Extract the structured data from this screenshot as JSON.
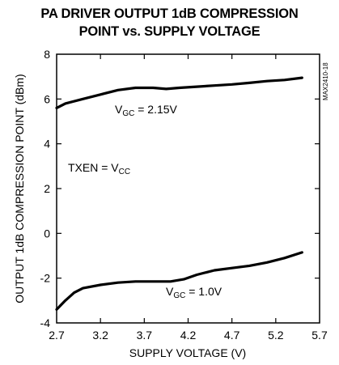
{
  "chart_data": {
    "type": "line",
    "title_line1": "PA DRIVER OUTPUT 1dB COMPRESSION",
    "title_line2": "POINT vs. SUPPLY VOLTAGE",
    "xlabel": "SUPPLY VOLTAGE (V)",
    "ylabel": "OUTPUT 1dB COMPRESSION POINT (dBm)",
    "xlim": [
      2.7,
      5.7
    ],
    "ylim": [
      -4,
      8
    ],
    "xticks": [
      2.7,
      3.2,
      3.7,
      4.2,
      4.7,
      5.2,
      5.7
    ],
    "yticks": [
      -4,
      -2,
      0,
      2,
      4,
      6,
      8
    ],
    "grid": false,
    "legend": "none",
    "watermark": "MAX2410-18",
    "series": [
      {
        "label_main": "V",
        "label_sub": "GC",
        "label_rest": " = 2.15V",
        "x": [
          2.7,
          2.8,
          3.0,
          3.2,
          3.4,
          3.6,
          3.8,
          3.95,
          4.1,
          4.3,
          4.5,
          4.7,
          4.9,
          5.1,
          5.3,
          5.5
        ],
        "y": [
          5.6,
          5.8,
          6.0,
          6.2,
          6.4,
          6.5,
          6.5,
          6.45,
          6.5,
          6.55,
          6.6,
          6.65,
          6.72,
          6.8,
          6.85,
          6.95
        ]
      },
      {
        "label_main": "V",
        "label_sub": "GC",
        "label_rest": " = 1.0V",
        "x": [
          2.7,
          2.8,
          2.9,
          3.0,
          3.2,
          3.4,
          3.6,
          3.8,
          4.0,
          4.15,
          4.3,
          4.5,
          4.7,
          4.9,
          5.1,
          5.3,
          5.5
        ],
        "y": [
          -3.4,
          -3.0,
          -2.65,
          -2.45,
          -2.3,
          -2.2,
          -2.15,
          -2.15,
          -2.15,
          -2.05,
          -1.85,
          -1.65,
          -1.55,
          -1.45,
          -1.3,
          -1.1,
          -0.85
        ]
      }
    ],
    "annotation": {
      "main": "TXEN = V",
      "sub": "CC"
    }
  }
}
